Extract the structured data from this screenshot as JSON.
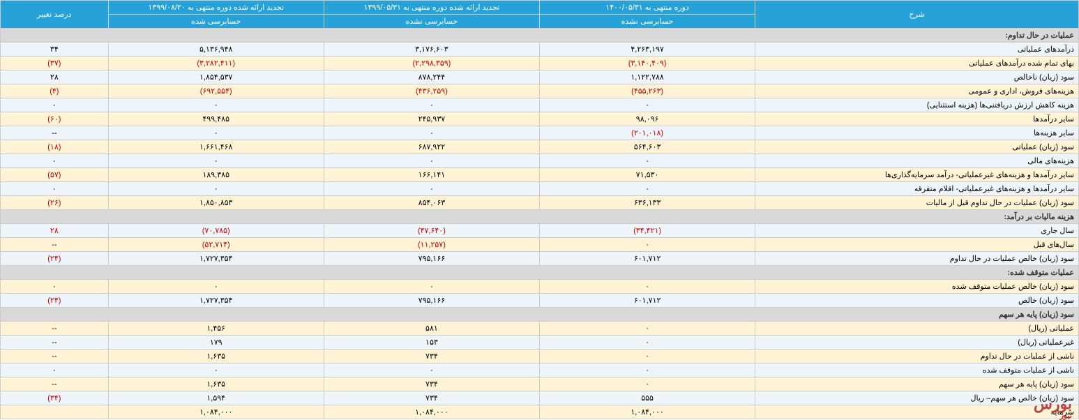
{
  "headers": {
    "row1": {
      "desc": "شرح",
      "c1": "دوره منتهی به ۱۴۰۰/۰۵/۳۱",
      "c2": "تجدید ارائه شده دوره منتهی به ۱۳۹۹/۰۵/۳۱",
      "c3": "تجدید ارائه شده دوره منتهی به ۱۳۹۹/۰۸/۲۰",
      "pct": "درصد تغییر"
    },
    "row2": {
      "c1": "حسابرسی نشده",
      "c2": "حسابرسی نشده",
      "c3": "حسابرسی شده"
    }
  },
  "sections": [
    {
      "title": "عملیات در حال تداوم:",
      "rows": [
        {
          "desc": "درآمدهای عملیاتی",
          "c1": "۴,۲۶۳,۱۹۷",
          "c2": "۳,۱۷۶,۶۰۳",
          "c3": "۵,۱۳۶,۹۴۸",
          "pct": "۳۴",
          "neg": false
        },
        {
          "desc": "بهای تمام شده درآمدهای عملیاتی",
          "c1": "(۳,۱۴۰,۴۰۹)",
          "c2": "(۲,۲۹۸,۳۵۹)",
          "c3": "(۳,۲۸۲,۴۱۱)",
          "pct": "(۳۷)",
          "neg": true
        },
        {
          "desc": "سود (زیان) ناخالص",
          "c1": "۱,۱۲۲,۷۸۸",
          "c2": "۸۷۸,۲۴۴",
          "c3": "۱,۸۵۴,۵۳۷",
          "pct": "۲۸",
          "neg": false
        },
        {
          "desc": "هزینه‌های فروش، اداری و عمومی",
          "c1": "(۴۵۵,۲۶۳)",
          "c2": "(۴۳۶,۲۵۹)",
          "c3": "(۶۹۲,۵۵۴)",
          "pct": "(۴)",
          "neg": true
        },
        {
          "desc": "هزینه کاهش ارزش دریافتنی‌ها (هزینه استثنایی)",
          "c1": "۰",
          "c2": "۰",
          "c3": "۰",
          "pct": "۰",
          "neg": false
        },
        {
          "desc": "سایر درآمدها",
          "c1": "۹۸,۰۹۶",
          "c2": "۲۴۵,۹۳۷",
          "c3": "۴۹۹,۴۸۵",
          "pct": "(۶۰)",
          "neg": false,
          "pctneg": true
        },
        {
          "desc": "سایر هزینه‌ها",
          "c1": "(۲۰۱,۰۱۸)",
          "c2": "۰",
          "c3": "۰",
          "pct": "--",
          "neg": false,
          "c1neg": true
        },
        {
          "desc": "سود (زیان) عملیاتی",
          "c1": "۵۶۴,۶۰۳",
          "c2": "۶۸۷,۹۲۲",
          "c3": "۱,۶۶۱,۴۶۸",
          "pct": "(۱۸)",
          "neg": false,
          "pctneg": true
        },
        {
          "desc": "هزینه‌های مالی",
          "c1": "۰",
          "c2": "۰",
          "c3": "۰",
          "pct": "۰",
          "neg": false
        },
        {
          "desc": "سایر درآمدها و هزینه‌های غیرعملیاتی- درآمد سرمایه‌گذاری‌ها",
          "c1": "۷۱,۵۳۰",
          "c2": "۱۶۶,۱۴۱",
          "c3": "۱۸۹,۳۸۵",
          "pct": "(۵۷)",
          "neg": false,
          "pctneg": true
        },
        {
          "desc": "سایر درآمدها و هزینه‌های غیرعملیاتی- اقلام متفرقه",
          "c1": "۰",
          "c2": "۰",
          "c3": "۰",
          "pct": "۰",
          "neg": false
        },
        {
          "desc": "سود (زیان) عملیات در حال تداوم قبل از مالیات",
          "c1": "۶۳۶,۱۳۳",
          "c2": "۸۵۴,۰۶۳",
          "c3": "۱,۸۵۰,۸۵۳",
          "pct": "(۲۶)",
          "neg": false,
          "pctneg": true
        }
      ]
    },
    {
      "title": "هزینه مالیات بر درآمد:",
      "rows": [
        {
          "desc": "سال جاری",
          "c1": "(۳۴,۴۲۱)",
          "c2": "(۴۷,۶۴۰)",
          "c3": "(۷۰,۷۸۵)",
          "pct": "۲۸",
          "neg": true
        },
        {
          "desc": "سال‌های قبل",
          "c1": "۰",
          "c2": "(۱۱,۲۵۷)",
          "c3": "(۵۲,۷۱۴)",
          "pct": "--",
          "neg": false,
          "c2neg": true,
          "c3neg": true
        },
        {
          "desc": "سود (زیان) خالص عملیات در حال تداوم",
          "c1": "۶۰۱,۷۱۲",
          "c2": "۷۹۵,۱۶۶",
          "c3": "۱,۷۲۷,۳۵۴",
          "pct": "(۲۴)",
          "neg": false,
          "pctneg": true
        }
      ]
    },
    {
      "title": "عملیات متوقف شده:",
      "rows": [
        {
          "desc": "سود (زیان) خالص عملیات متوقف شده",
          "c1": "۰",
          "c2": "۰",
          "c3": "۰",
          "pct": "۰",
          "neg": false
        },
        {
          "desc": "سود (زیان) خالص",
          "c1": "۶۰۱,۷۱۲",
          "c2": "۷۹۵,۱۶۶",
          "c3": "۱,۷۲۷,۳۵۴",
          "pct": "(۲۴)",
          "neg": false,
          "pctneg": true
        }
      ]
    },
    {
      "title": "سود (زیان) پایه هر سهم",
      "rows": [
        {
          "desc": "عملیاتی (ریال)",
          "c1": "۰",
          "c2": "۵۸۱",
          "c3": "۱,۴۵۶",
          "pct": "--",
          "neg": false
        },
        {
          "desc": "غیرعملیاتی (ریال)",
          "c1": "۰",
          "c2": "۱۵۳",
          "c3": "۱۷۹",
          "pct": "--",
          "neg": false
        },
        {
          "desc": "ناشی از عملیات در حال تداوم",
          "c1": "۰",
          "c2": "۷۳۴",
          "c3": "۱,۶۳۵",
          "pct": "--",
          "neg": false
        },
        {
          "desc": "ناشی از عملیات متوقف شده",
          "c1": "۰",
          "c2": "۰",
          "c3": "۰",
          "pct": "۰",
          "neg": false
        },
        {
          "desc": "سود (زیان) پایه هر سهم",
          "c1": "۰",
          "c2": "۷۳۴",
          "c3": "۱,۶۳۵",
          "pct": "--",
          "neg": false
        },
        {
          "desc": "سود (زیان) خالص هر سهم– ریال",
          "c1": "۵۵۵",
          "c2": "۷۳۴",
          "c3": "۱,۵۹۴",
          "pct": "(۳۴)",
          "neg": false,
          "pctneg": true
        },
        {
          "desc": "سرمایه",
          "c1": "۱,۰۸۴,۰۰۰",
          "c2": "۱,۰۸۴,۰۰۰",
          "c3": "۱,۰۸۴,۰۰۰",
          "pct": "",
          "neg": false
        }
      ]
    }
  ],
  "watermark": {
    "main": "بورس",
    "sub": "نیوز"
  }
}
